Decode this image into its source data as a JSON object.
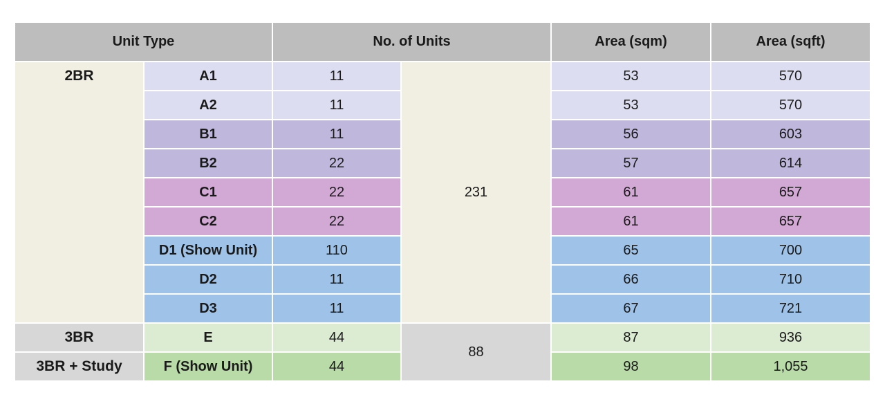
{
  "headers": {
    "unit_type": "Unit Type",
    "no_of_units": "No. of Units",
    "area_sqm": "Area (sqm)",
    "area_sqft": "Area (sqft)"
  },
  "groups": [
    {
      "category": "2BR",
      "subtotal": "231"
    },
    {
      "category": "3BR",
      "subtotal": "88"
    },
    {
      "category": "3BR + Study"
    }
  ],
  "rows": [
    {
      "type": "A1",
      "units": "11",
      "sqm": "53",
      "sqft": "570",
      "color": "#dcddf0"
    },
    {
      "type": "A2",
      "units": "11",
      "sqm": "53",
      "sqft": "570",
      "color": "#dcddf0"
    },
    {
      "type": "B1",
      "units": "11",
      "sqm": "56",
      "sqft": "603",
      "color": "#bfb8dc"
    },
    {
      "type": "B2",
      "units": "22",
      "sqm": "57",
      "sqft": "614",
      "color": "#bfb8dc"
    },
    {
      "type": "C1",
      "units": "22",
      "sqm": "61",
      "sqft": "657",
      "color": "#d2a9d5"
    },
    {
      "type": "C2",
      "units": "22",
      "sqm": "61",
      "sqft": "657",
      "color": "#d2a9d5"
    },
    {
      "type": "D1 (Show Unit)",
      "units": "110",
      "sqm": "65",
      "sqft": "700",
      "color": "#9fc3e8"
    },
    {
      "type": "D2",
      "units": "11",
      "sqm": "66",
      "sqft": "710",
      "color": "#9fc3e8"
    },
    {
      "type": "D3",
      "units": "11",
      "sqm": "67",
      "sqft": "721",
      "color": "#9fc3e8"
    },
    {
      "type": "E",
      "units": "44",
      "sqm": "87",
      "sqft": "936",
      "color": "#dbecd2"
    },
    {
      "type": "F (Show Unit)",
      "units": "44",
      "sqm": "98",
      "sqft": "1,055",
      "color": "#b8dba8"
    }
  ]
}
